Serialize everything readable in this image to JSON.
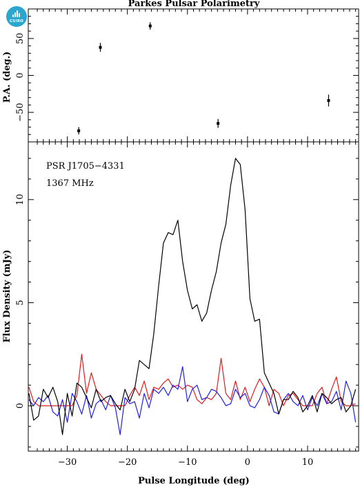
{
  "logo": {
    "text": "CSIRO",
    "color": "#2aa6cf"
  },
  "chart_data": {
    "title": "Parkes Pulsar Polarimetry",
    "xlabel": "Pulse Longitude (deg)",
    "xlim": [
      -36.5,
      18.5
    ],
    "xticks": [
      -30,
      -20,
      -10,
      0,
      10
    ],
    "annotations": [
      "PSR J1705−4331",
      "1367 MHz"
    ],
    "top_panel": {
      "type": "scatter",
      "ylabel": "P.A. (deg.)",
      "ylim": [
        -90,
        90
      ],
      "yticks": [
        -50,
        0,
        50
      ],
      "points": [
        {
          "x": -28.1,
          "y": -75,
          "err": 5
        },
        {
          "x": -24.5,
          "y": 38,
          "err": 6
        },
        {
          "x": -16.2,
          "y": 67,
          "err": 5
        },
        {
          "x": -4.9,
          "y": -65,
          "err": 6
        },
        {
          "x": 13.5,
          "y": -34,
          "err": 8
        }
      ]
    },
    "bottom_panel": {
      "type": "line",
      "ylabel": "Flux Density (mJy)",
      "ylim": [
        -2.2,
        12.8
      ],
      "yticks": [
        0,
        5,
        10
      ],
      "x": [
        -36.4,
        -35.6,
        -34.8,
        -34.0,
        -33.2,
        -32.4,
        -31.6,
        -30.8,
        -30.0,
        -29.2,
        -28.4,
        -27.6,
        -26.8,
        -26.0,
        -25.2,
        -24.4,
        -23.6,
        -22.8,
        -22.0,
        -21.2,
        -20.4,
        -19.6,
        -18.8,
        -18.0,
        -17.2,
        -16.4,
        -15.6,
        -14.8,
        -14.0,
        -13.2,
        -12.4,
        -11.6,
        -10.8,
        -10.0,
        -9.2,
        -8.4,
        -7.6,
        -6.8,
        -6.0,
        -5.2,
        -4.4,
        -3.6,
        -2.8,
        -2.0,
        -1.2,
        -0.4,
        0.4,
        1.2,
        2.0,
        2.8,
        3.6,
        4.4,
        5.2,
        6.0,
        6.8,
        7.6,
        8.4,
        9.2,
        10.0,
        10.8,
        11.6,
        12.4,
        13.2,
        14.0,
        14.8,
        15.6,
        16.4,
        17.2,
        18.0
      ],
      "series": [
        {
          "name": "",
          "color": "#000000",
          "values": [
            0.6,
            -0.7,
            -0.5,
            0.8,
            0.4,
            0.9,
            0.2,
            -1.4,
            0.6,
            -0.5,
            1.1,
            0.9,
            0.4,
            -0.1,
            0.8,
            0.2,
            0.4,
            0.5,
            0.1,
            -0.2,
            0.8,
            0.2,
            0.8,
            2.2,
            2.0,
            1.8,
            3.5,
            5.8,
            7.9,
            8.4,
            8.3,
            9.0,
            7.0,
            5.6,
            4.7,
            4.9,
            4.1,
            4.5,
            5.6,
            6.5,
            7.9,
            8.8,
            10.7,
            12.0,
            11.7,
            9.5,
            5.2,
            4.1,
            4.2,
            1.6,
            1.1,
            0.6,
            -0.4,
            0.3,
            0.3,
            0.7,
            0.4,
            -0.3,
            0.0,
            0.5,
            -0.3,
            0.6,
            0.4,
            0.1,
            0.3,
            0.4,
            -0.3,
            0.0,
            0.8
          ]
        },
        {
          "name": "",
          "color": "#e41a1c",
          "values": [
            0.9,
            0.2,
            0.0,
            0.0,
            0.0,
            0.0,
            0.0,
            0.0,
            0.0,
            0.0,
            0.5,
            2.5,
            0.6,
            1.6,
            0.8,
            0.5,
            0.2,
            0.0,
            0.0,
            0.0,
            0.0,
            0.5,
            0.9,
            0.5,
            1.2,
            0.3,
            0.9,
            0.8,
            1.1,
            1.3,
            0.9,
            1.0,
            0.8,
            1.0,
            0.9,
            0.3,
            0.1,
            0.4,
            0.3,
            0.6,
            2.3,
            0.6,
            0.3,
            1.2,
            0.3,
            0.9,
            0.2,
            0.8,
            1.3,
            0.9,
            0.0,
            0.8,
            0.6,
            0.0,
            0.5,
            0.6,
            0.3,
            0.0,
            0.0,
            0.0,
            0.6,
            0.9,
            0.1,
            0.8,
            1.4,
            0.2,
            0.0,
            0.0,
            0.1
          ]
        },
        {
          "name": "",
          "color": "#1f1fe8",
          "values": [
            0.3,
            0.0,
            0.4,
            0.2,
            0.5,
            -0.3,
            -0.5,
            0.3,
            -0.8,
            0.6,
            0.2,
            -0.4,
            0.5,
            -0.6,
            0.1,
            0.3,
            -0.2,
            0.5,
            -0.1,
            -1.4,
            0.4,
            0.1,
            0.2,
            -0.6,
            0.6,
            -0.1,
            0.8,
            0.6,
            0.9,
            0.5,
            1.0,
            0.8,
            1.9,
            0.2,
            0.8,
            1.0,
            0.3,
            0.4,
            0.8,
            0.7,
            0.4,
            0.0,
            0.1,
            0.8,
            0.4,
            0.6,
            0.0,
            -0.1,
            0.3,
            0.9,
            0.5,
            -0.3,
            -0.4,
            0.3,
            0.6,
            0.2,
            0.0,
            0.5,
            -0.2,
            0.4,
            0.0,
            0.6,
            0.1,
            0.2,
            0.7,
            -0.2,
            1.2,
            0.6,
            -0.8
          ]
        }
      ]
    }
  }
}
